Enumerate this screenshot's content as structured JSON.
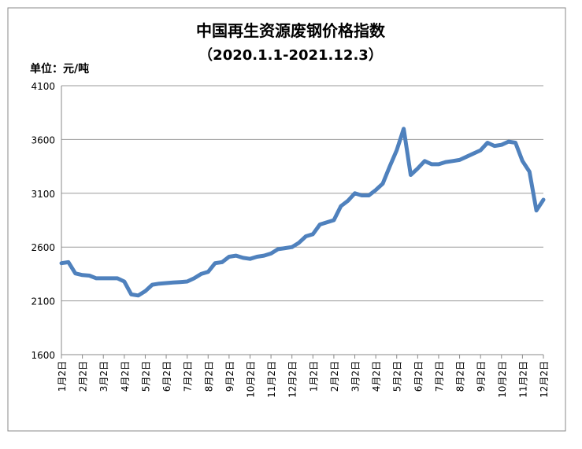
{
  "chart_data": {
    "type": "line",
    "title": "中国再生资源废钢价格指数",
    "subtitle": "（2020.1.1-2021.12.3）",
    "y_unit": "单位：元/吨",
    "categories": [
      "1月2日",
      null,
      null,
      "2月2日",
      null,
      null,
      "3月2日",
      null,
      null,
      "4月2日",
      null,
      null,
      "5月2日",
      null,
      null,
      "6月2日",
      null,
      null,
      "7月2日",
      null,
      null,
      "8月2日",
      null,
      null,
      "9月2日",
      null,
      null,
      "10月2日",
      null,
      null,
      "11月2日",
      null,
      null,
      "12月2日",
      null,
      null,
      "1月2日",
      null,
      null,
      "2月2日",
      null,
      null,
      "3月2日",
      null,
      null,
      "4月2日",
      null,
      null,
      "5月2日",
      null,
      null,
      "6月2日",
      null,
      null,
      "7月2日",
      null,
      null,
      "8月2日",
      null,
      null,
      "9月2日",
      null,
      null,
      "10月2日",
      null,
      null,
      "11月2日",
      null,
      null,
      "12月2日"
    ],
    "series": [
      {
        "color": "#4f81bd",
        "values": [
          2450,
          2460,
          2355,
          2340,
          2335,
          2310,
          2310,
          2310,
          2310,
          2280,
          2160,
          2150,
          2190,
          2250,
          2260,
          2265,
          2270,
          2275,
          2280,
          2310,
          2350,
          2370,
          2450,
          2460,
          2510,
          2520,
          2500,
          2490,
          2510,
          2520,
          2540,
          2580,
          2590,
          2600,
          2640,
          2700,
          2720,
          2810,
          2830,
          2850,
          2980,
          3030,
          3100,
          3080,
          3080,
          3130,
          3190,
          3350,
          3500,
          3700,
          3270,
          3330,
          3400,
          3370,
          3370,
          3390,
          3400,
          3410,
          3440,
          3470,
          3500,
          3570,
          3540,
          3550,
          3580,
          3570,
          3400,
          3300,
          2940,
          3040
        ]
      }
    ],
    "ylim": [
      1600,
      4100
    ],
    "yticks": [
      1600,
      2100,
      2600,
      3100,
      3600,
      4100
    ],
    "grid": true
  }
}
